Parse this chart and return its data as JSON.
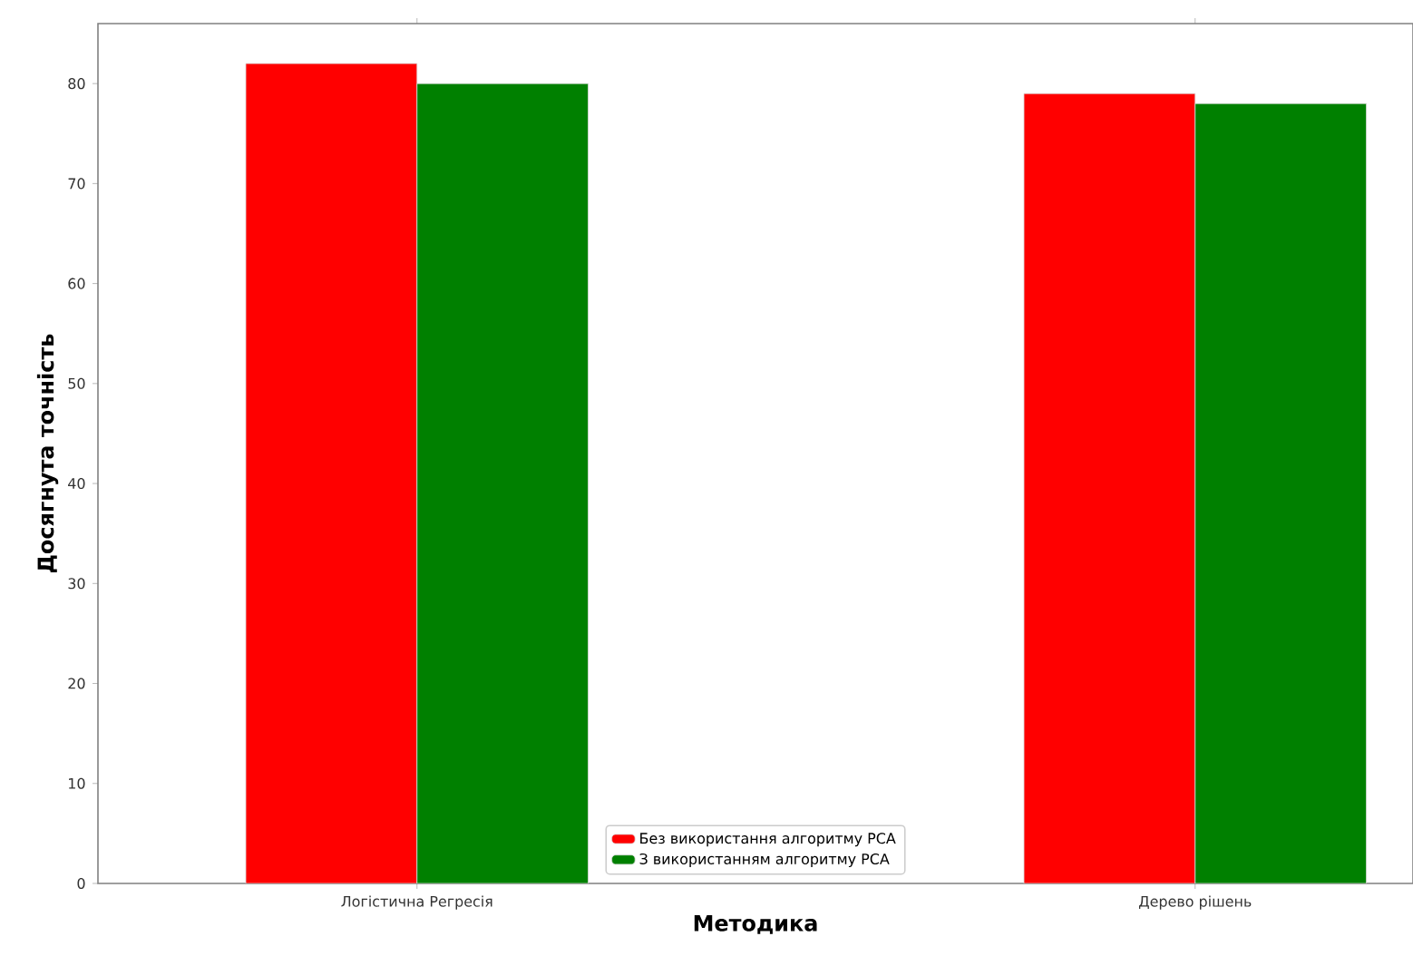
{
  "chart_data": {
    "type": "bar",
    "xlabel": "Методика",
    "ylabel": "Досягнута точність",
    "categories": [
      "Логістична Регресія",
      "Дерево рішень"
    ],
    "series": [
      {
        "name": "Без використання алгоритму PCA",
        "color": "#ff0000",
        "values": [
          82,
          79
        ]
      },
      {
        "name": "З використанням алгоритму PCA",
        "color": "#008000",
        "values": [
          80,
          78
        ]
      }
    ],
    "ylim": [
      0,
      86
    ],
    "yticks": [
      0,
      10,
      20,
      30,
      40,
      50,
      60,
      70,
      80
    ],
    "grid": false,
    "legend": "bottom"
  }
}
